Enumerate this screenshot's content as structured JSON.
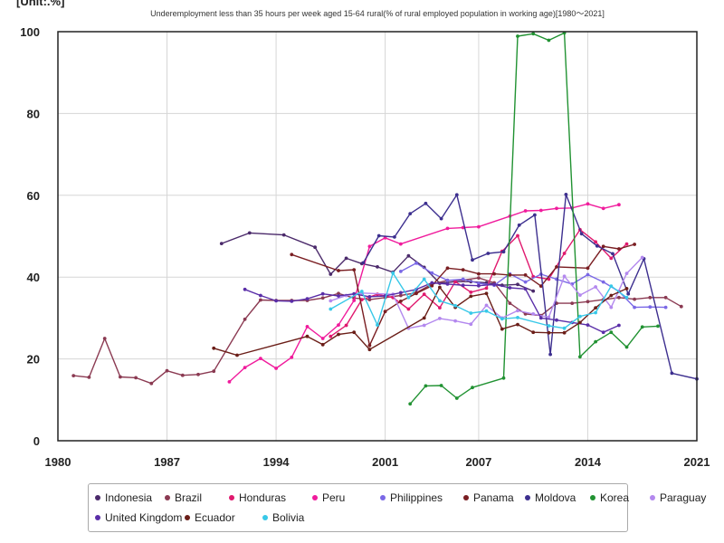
{
  "unit_label": "[Unit:.%]",
  "chart_data": {
    "type": "line",
    "title": "Underemployment less than 35 hours per week aged 15-64 rural(% of rural employed population in working age)[1980～2021]",
    "xlabel": "",
    "ylabel": "",
    "xlim": [
      1980,
      2021
    ],
    "ylim": [
      0,
      100
    ],
    "x_ticks": [
      1980,
      1987,
      1994,
      2001,
      2007,
      2014,
      2021
    ],
    "y_ticks": [
      0,
      20,
      40,
      60,
      80,
      100
    ],
    "grid": true,
    "legend_placement": "bottom",
    "series": [
      {
        "name": "Indonesia",
        "color": "#4b2a6b",
        "points": [
          [
            1990.5,
            48.2
          ],
          [
            1992.3,
            50.8
          ],
          [
            1994.5,
            50.3
          ],
          [
            1996.5,
            47.3
          ],
          [
            1997.5,
            40.7
          ],
          [
            1998.5,
            44.6
          ],
          [
            1999.5,
            43.3
          ],
          [
            2000.5,
            42.5
          ],
          [
            2001.5,
            41.2
          ],
          [
            2002.5,
            45.2
          ],
          [
            2003.5,
            42.4
          ],
          [
            2004.5,
            38.5
          ],
          [
            2005.5,
            38.9
          ],
          [
            2006.5,
            38.9
          ],
          [
            2007.5,
            38.6
          ],
          [
            2008.5,
            38.0
          ],
          [
            2009.5,
            38.2
          ],
          [
            2010.5,
            36.6
          ]
        ]
      },
      {
        "name": "Brazil",
        "color": "#8b3a52",
        "points": [
          [
            1981,
            15.9
          ],
          [
            1982,
            15.5
          ],
          [
            1983,
            25.0
          ],
          [
            1984,
            15.6
          ],
          [
            1985,
            15.4
          ],
          [
            1986,
            14.0
          ],
          [
            1987,
            17.1
          ],
          [
            1988,
            16.0
          ],
          [
            1989,
            16.2
          ],
          [
            1990,
            17.0
          ],
          [
            1992,
            29.7
          ],
          [
            1993,
            34.4
          ],
          [
            1994,
            34.3
          ],
          [
            1995,
            34.3
          ],
          [
            1996,
            34.3
          ],
          [
            1997,
            34.9
          ],
          [
            1998,
            36.0
          ],
          [
            1999,
            34.9
          ],
          [
            2000,
            34.5
          ],
          [
            2001,
            35.0
          ],
          [
            2002,
            35.5
          ],
          [
            2003,
            36.2
          ],
          [
            2004,
            38.3
          ],
          [
            2005,
            39.2
          ],
          [
            2006,
            39.3
          ],
          [
            2007,
            39.8
          ],
          [
            2008,
            38.6
          ],
          [
            2009,
            33.6
          ],
          [
            2010,
            31.0
          ],
          [
            2011,
            30.6
          ],
          [
            2012,
            33.6
          ],
          [
            2013,
            33.6
          ],
          [
            2014,
            34.0
          ],
          [
            2015,
            34.5
          ],
          [
            2016,
            35.0
          ],
          [
            2017,
            34.6
          ],
          [
            2018,
            35.0
          ],
          [
            2019,
            35.0
          ],
          [
            2020,
            32.8
          ]
        ]
      },
      {
        "name": "Honduras",
        "color": "#e0196e",
        "points": [
          [
            1997.5,
            25.5
          ],
          [
            1998.5,
            28.2
          ],
          [
            1999.5,
            34.5
          ],
          [
            2000.5,
            35.8
          ],
          [
            2001.5,
            35.0
          ],
          [
            2002.5,
            32.2
          ],
          [
            2003.5,
            35.8
          ],
          [
            2004.5,
            32.5
          ],
          [
            2005.5,
            38.9
          ],
          [
            2006.5,
            36.3
          ],
          [
            2007.5,
            37.3
          ],
          [
            2008.5,
            46.3
          ],
          [
            2009.5,
            50.1
          ],
          [
            2010.5,
            40.1
          ],
          [
            2011.5,
            39.5
          ],
          [
            2012.5,
            45.8
          ],
          [
            2013.5,
            51.6
          ],
          [
            2014.5,
            48.6
          ],
          [
            2015.5,
            44.6
          ],
          [
            2016.5,
            48.1
          ]
        ]
      },
      {
        "name": "Peru",
        "color": "#f01b9c",
        "points": [
          [
            1991,
            14.4
          ],
          [
            1992,
            17.9
          ],
          [
            1993,
            20.1
          ],
          [
            1994,
            17.7
          ],
          [
            1995,
            20.4
          ],
          [
            1996,
            27.9
          ],
          [
            1997,
            25.0
          ],
          [
            1998,
            28.3
          ],
          [
            1999,
            34.3
          ],
          [
            2000,
            47.5
          ],
          [
            2001,
            49.6
          ],
          [
            2002,
            48.1
          ],
          [
            2005,
            51.9
          ],
          [
            2006,
            52.1
          ],
          [
            2007,
            52.3
          ],
          [
            2009,
            54.9
          ],
          [
            2010,
            56.2
          ],
          [
            2011,
            56.3
          ],
          [
            2012,
            56.8
          ],
          [
            2013,
            56.9
          ],
          [
            2014,
            57.9
          ],
          [
            2015,
            56.8
          ],
          [
            2016,
            57.7
          ]
        ]
      },
      {
        "name": "Philippines",
        "color": "#7a68e6",
        "points": [
          [
            2002,
            41.4
          ],
          [
            2003,
            43.4
          ],
          [
            2004,
            41.0
          ],
          [
            2005,
            39.2
          ],
          [
            2006,
            39.5
          ],
          [
            2007,
            38.5
          ],
          [
            2008,
            38.0
          ],
          [
            2009,
            40.8
          ],
          [
            2010,
            38.8
          ],
          [
            2011,
            40.7
          ],
          [
            2012,
            39.5
          ],
          [
            2013,
            38.3
          ],
          [
            2014,
            40.6
          ],
          [
            2015,
            38.8
          ],
          [
            2016,
            36.5
          ],
          [
            2017,
            32.6
          ],
          [
            2018,
            32.7
          ],
          [
            2019,
            32.6
          ]
        ]
      },
      {
        "name": "Panama",
        "color": "#7a1e22",
        "points": [
          [
            1995,
            45.5
          ],
          [
            1998,
            41.6
          ],
          [
            1999,
            41.8
          ],
          [
            2000,
            23.3
          ],
          [
            2001,
            31.6
          ],
          [
            2002,
            34.1
          ],
          [
            2003,
            36.0
          ],
          [
            2004,
            37.9
          ],
          [
            2005,
            42.2
          ],
          [
            2006,
            41.8
          ],
          [
            2007,
            40.8
          ],
          [
            2008,
            40.8
          ],
          [
            2009,
            40.5
          ],
          [
            2010,
            40.5
          ],
          [
            2011,
            37.8
          ],
          [
            2012,
            42.5
          ],
          [
            2014,
            42.2
          ],
          [
            2015,
            47.5
          ],
          [
            2016,
            46.9
          ],
          [
            2017,
            48.0
          ]
        ]
      },
      {
        "name": "Moldova",
        "color": "#3d2f8f",
        "points": [
          [
            1999.6,
            43.5
          ],
          [
            2000.6,
            50.1
          ],
          [
            2001.6,
            49.8
          ],
          [
            2002.6,
            55.5
          ],
          [
            2003.6,
            58.0
          ],
          [
            2004.6,
            54.3
          ],
          [
            2005.6,
            60.1
          ],
          [
            2006.6,
            44.2
          ],
          [
            2007.6,
            45.8
          ],
          [
            2008.6,
            46.2
          ],
          [
            2009.6,
            52.7
          ],
          [
            2010.6,
            55.2
          ],
          [
            2011.6,
            21.1
          ],
          [
            2012.6,
            60.2
          ],
          [
            2013.6,
            50.6
          ],
          [
            2014.6,
            47.6
          ],
          [
            2015.6,
            45.7
          ],
          [
            2016.6,
            35.9
          ],
          [
            2017.6,
            44.5
          ],
          [
            2019.4,
            16.5
          ],
          [
            2021,
            15.1
          ]
        ]
      },
      {
        "name": "Korea",
        "color": "#219232",
        "points": [
          [
            2002.6,
            9.0
          ],
          [
            2003.6,
            13.4
          ],
          [
            2004.6,
            13.5
          ],
          [
            2005.6,
            10.4
          ],
          [
            2006.6,
            13.0
          ],
          [
            2008.6,
            15.3
          ],
          [
            2009.5,
            98.9
          ],
          [
            2010.5,
            99.5
          ],
          [
            2011.5,
            97.9
          ],
          [
            2012.5,
            99.7
          ],
          [
            2013.5,
            20.5
          ],
          [
            2014.5,
            24.2
          ],
          [
            2015.5,
            26.5
          ],
          [
            2016.5,
            22.9
          ],
          [
            2017.5,
            27.8
          ],
          [
            2018.5,
            28.0
          ]
        ]
      },
      {
        "name": "Paraguay",
        "color": "#b388ee",
        "points": [
          [
            1997.5,
            34.2
          ],
          [
            1998.5,
            35.5
          ],
          [
            1999.5,
            36.1
          ],
          [
            2001.5,
            35.8
          ],
          [
            2002.5,
            27.5
          ],
          [
            2003.5,
            28.2
          ],
          [
            2004.5,
            29.9
          ],
          [
            2005.5,
            29.3
          ],
          [
            2006.5,
            28.5
          ],
          [
            2007.5,
            33.1
          ],
          [
            2008.5,
            30.0
          ],
          [
            2009.5,
            31.8
          ],
          [
            2010.5,
            31.0
          ],
          [
            2011.5,
            30.2
          ],
          [
            2012.5,
            40.2
          ],
          [
            2013.5,
            35.6
          ],
          [
            2014.5,
            37.6
          ],
          [
            2015.5,
            32.6
          ],
          [
            2016.5,
            40.9
          ],
          [
            2017.5,
            44.8
          ]
        ]
      },
      {
        "name": "United Kingdom",
        "color": "#5a2ea8",
        "points": [
          [
            1992,
            37.0
          ],
          [
            1993,
            35.5
          ],
          [
            1994,
            34.2
          ],
          [
            1995,
            34.1
          ],
          [
            1996,
            34.7
          ],
          [
            1997,
            35.9
          ],
          [
            1998,
            35.4
          ],
          [
            1999,
            35.9
          ],
          [
            2000,
            35.2
          ],
          [
            2001,
            35.4
          ],
          [
            2002,
            36.2
          ],
          [
            2003,
            37.0
          ],
          [
            2004,
            38.6
          ],
          [
            2005,
            38.3
          ],
          [
            2006,
            38.0
          ],
          [
            2007,
            37.9
          ],
          [
            2008,
            38.2
          ],
          [
            2009,
            37.4
          ],
          [
            2010,
            37.1
          ],
          [
            2011,
            30.0
          ],
          [
            2012,
            29.5
          ],
          [
            2013,
            28.9
          ],
          [
            2014,
            28.3
          ],
          [
            2015,
            26.5
          ],
          [
            2016,
            28.2
          ]
        ]
      },
      {
        "name": "Ecuador",
        "color": "#6b1e18",
        "points": [
          [
            1990,
            22.6
          ],
          [
            1991.5,
            20.9
          ],
          [
            1996,
            25.5
          ],
          [
            1997,
            23.5
          ],
          [
            1998,
            26.0
          ],
          [
            1999,
            26.5
          ],
          [
            2000,
            22.3
          ],
          [
            2003.5,
            30.0
          ],
          [
            2004.5,
            37.5
          ],
          [
            2005.5,
            32.6
          ],
          [
            2006.5,
            35.3
          ],
          [
            2007.5,
            36.0
          ],
          [
            2008.5,
            27.3
          ],
          [
            2009.5,
            28.4
          ],
          [
            2010.5,
            26.5
          ],
          [
            2011.5,
            26.4
          ],
          [
            2012.5,
            26.4
          ],
          [
            2013.5,
            28.9
          ],
          [
            2014.5,
            32.5
          ],
          [
            2015.5,
            35.5
          ],
          [
            2016.5,
            37.2
          ]
        ]
      },
      {
        "name": "Bolivia",
        "color": "#38c8e8",
        "points": [
          [
            1997.5,
            32.2
          ],
          [
            1999.5,
            36.5
          ],
          [
            2000.5,
            28.3
          ],
          [
            2001.5,
            41.0
          ],
          [
            2002.5,
            35.0
          ],
          [
            2003.5,
            39.5
          ],
          [
            2004.5,
            34.2
          ],
          [
            2005.5,
            33.0
          ],
          [
            2006.5,
            31.2
          ],
          [
            2007.5,
            31.7
          ],
          [
            2008.5,
            29.8
          ],
          [
            2009.5,
            30.1
          ],
          [
            2011.5,
            28.1
          ],
          [
            2012.5,
            27.5
          ],
          [
            2013.5,
            30.4
          ],
          [
            2014.5,
            31.3
          ],
          [
            2015.5,
            37.8
          ],
          [
            2016.5,
            35.0
          ]
        ]
      }
    ]
  }
}
